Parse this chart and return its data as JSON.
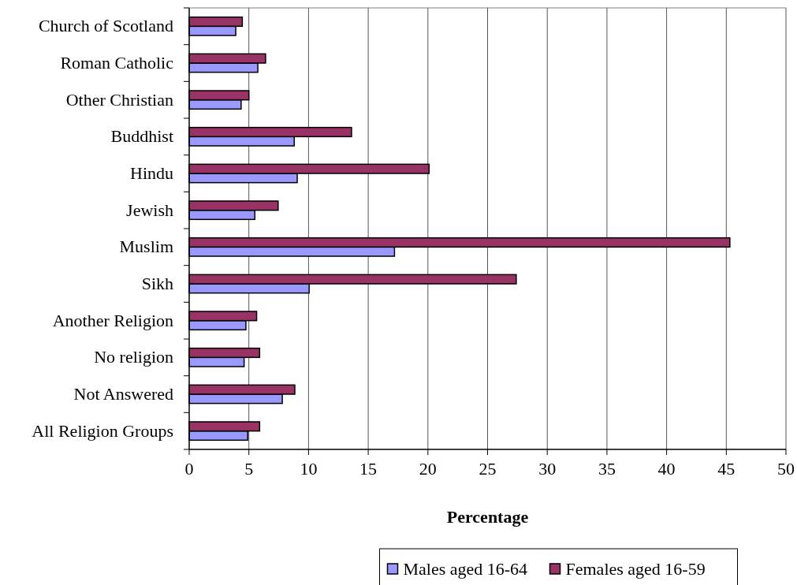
{
  "chart_data": {
    "type": "bar",
    "orientation": "horizontal",
    "xlabel": "Percentage",
    "categories": [
      "Church of Scotland",
      "Roman Catholic",
      "Other Christian",
      "Buddhist",
      "Hindu",
      "Jewish",
      "Muslim",
      "Sikh",
      "Another Religion",
      "No religion",
      "Not Answered",
      "All Religion Groups"
    ],
    "series": [
      {
        "name": "Males aged 16-64",
        "color": "#9999ff",
        "values": [
          3.9,
          5.75,
          4.35,
          8.8,
          9.05,
          5.5,
          17.2,
          10.05,
          4.75,
          4.6,
          7.8,
          4.9
        ]
      },
      {
        "name": "Females aged 16-59",
        "color": "#993366",
        "values": [
          4.45,
          6.4,
          5.0,
          13.6,
          20.1,
          7.45,
          45.3,
          27.4,
          5.65,
          5.9,
          8.85,
          5.9
        ]
      }
    ],
    "xlim": [
      0,
      50
    ],
    "xticks": [
      0,
      5,
      10,
      15,
      20,
      25,
      30,
      35,
      40,
      45,
      50
    ],
    "grid": "x",
    "legend": "bottom"
  }
}
